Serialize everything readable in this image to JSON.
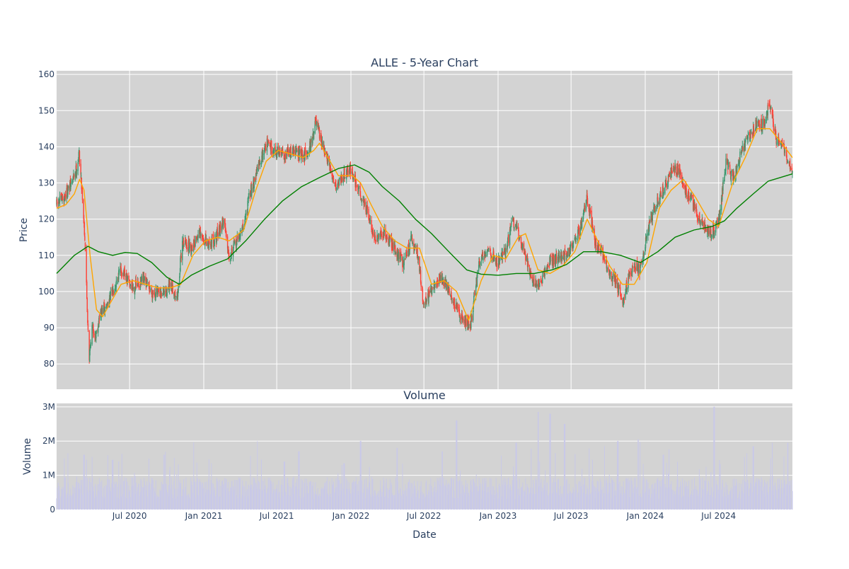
{
  "chart_data": [
    {
      "type": "candlestick",
      "title": "ALLE - 5-Year Chart",
      "ylabel": "Price",
      "ylim": [
        73,
        161
      ],
      "y_ticks": [
        "80",
        "90",
        "100",
        "110",
        "120",
        "130",
        "140",
        "150",
        "160"
      ],
      "x_ticks": [
        "Jul 2020",
        "Jan 2021",
        "Jul 2021",
        "Jan 2022",
        "Jul 2022",
        "Jan 2023",
        "Jul 2023",
        "Jan 2024",
        "Jul 2024"
      ],
      "x_tick_dates": [
        "2020-07-01",
        "2021-01-01",
        "2021-07-01",
        "2022-01-01",
        "2022-07-01",
        "2023-01-01",
        "2023-07-01",
        "2024-01-01",
        "2024-07-01"
      ],
      "xlim": [
        "2020-01-02",
        "2024-12-31"
      ],
      "grid": true,
      "colors": {
        "increasing": "#3d9970",
        "decreasing": "#ff4136",
        "ma_short": "#ffa500",
        "ma_long": "#008000",
        "plot_bg": "#d3d3d3"
      },
      "series": [
        {
          "role": "close_path",
          "points": [
            [
              "2020-01-02",
              124
            ],
            [
              "2020-01-20",
              126
            ],
            [
              "2020-02-05",
              129
            ],
            [
              "2020-02-20",
              134
            ],
            [
              "2020-02-27",
              138
            ],
            [
              "2020-03-05",
              128
            ],
            [
              "2020-03-12",
              115
            ],
            [
              "2020-03-18",
              95
            ],
            [
              "2020-03-23",
              82
            ],
            [
              "2020-03-30",
              90
            ],
            [
              "2020-04-08",
              88
            ],
            [
              "2020-04-20",
              94
            ],
            [
              "2020-05-05",
              96
            ],
            [
              "2020-05-20",
              100
            ],
            [
              "2020-06-08",
              106
            ],
            [
              "2020-06-20",
              104
            ],
            [
              "2020-07-10",
              101
            ],
            [
              "2020-08-05",
              103
            ],
            [
              "2020-08-25",
              100
            ],
            [
              "2020-09-15",
              99
            ],
            [
              "2020-10-10",
              101
            ],
            [
              "2020-10-28",
              99
            ],
            [
              "2020-11-09",
              114
            ],
            [
              "2020-11-30",
              112
            ],
            [
              "2020-12-20",
              116
            ],
            [
              "2021-01-10",
              113
            ],
            [
              "2021-02-01",
              115
            ],
            [
              "2021-02-20",
              120
            ],
            [
              "2021-03-05",
              110
            ],
            [
              "2021-03-20",
              113
            ],
            [
              "2021-04-10",
              118
            ],
            [
              "2021-04-25",
              127
            ],
            [
              "2021-05-15",
              134
            ],
            [
              "2021-06-05",
              141
            ],
            [
              "2021-06-25",
              139
            ],
            [
              "2021-07-20",
              138
            ],
            [
              "2021-08-15",
              139
            ],
            [
              "2021-09-05",
              137
            ],
            [
              "2021-09-25",
              141
            ],
            [
              "2021-10-05",
              147
            ],
            [
              "2021-10-20",
              141
            ],
            [
              "2021-11-10",
              134
            ],
            [
              "2021-11-26",
              129
            ],
            [
              "2021-12-10",
              132
            ],
            [
              "2021-12-30",
              134
            ],
            [
              "2022-01-20",
              128
            ],
            [
              "2022-02-05",
              124
            ],
            [
              "2022-02-20",
              118
            ],
            [
              "2022-03-05",
              114
            ],
            [
              "2022-03-25",
              116
            ],
            [
              "2022-04-20",
              112
            ],
            [
              "2022-05-10",
              108
            ],
            [
              "2022-05-30",
              114
            ],
            [
              "2022-06-15",
              111
            ],
            [
              "2022-06-30",
              97
            ],
            [
              "2022-07-15",
              99
            ],
            [
              "2022-08-10",
              104
            ],
            [
              "2022-08-25",
              102
            ],
            [
              "2022-09-20",
              95
            ],
            [
              "2022-10-10",
              92
            ],
            [
              "2022-10-25",
              91
            ],
            [
              "2022-11-15",
              108
            ],
            [
              "2022-12-05",
              112
            ],
            [
              "2022-12-30",
              108
            ],
            [
              "2023-01-20",
              111
            ],
            [
              "2023-02-05",
              120
            ],
            [
              "2023-02-20",
              116
            ],
            [
              "2023-03-10",
              110
            ],
            [
              "2023-03-25",
              104
            ],
            [
              "2023-04-15",
              101
            ],
            [
              "2023-05-05",
              108
            ],
            [
              "2023-05-25",
              109
            ],
            [
              "2023-06-20",
              110
            ],
            [
              "2023-07-10",
              114
            ],
            [
              "2023-07-25",
              118
            ],
            [
              "2023-08-10",
              126
            ],
            [
              "2023-08-30",
              113
            ],
            [
              "2023-09-20",
              110
            ],
            [
              "2023-10-05",
              104
            ],
            [
              "2023-10-20",
              103
            ],
            [
              "2023-11-05",
              97
            ],
            [
              "2023-11-20",
              104
            ],
            [
              "2023-12-05",
              107
            ],
            [
              "2023-12-20",
              106
            ],
            [
              "2024-01-10",
              118
            ],
            [
              "2024-01-25",
              123
            ],
            [
              "2024-02-15",
              128
            ],
            [
              "2024-03-05",
              133
            ],
            [
              "2024-03-25",
              134
            ],
            [
              "2024-04-10",
              128
            ],
            [
              "2024-04-25",
              125
            ],
            [
              "2024-05-10",
              121
            ],
            [
              "2024-05-25",
              118
            ],
            [
              "2024-06-15",
              116
            ],
            [
              "2024-07-01",
              120
            ],
            [
              "2024-07-20",
              136
            ],
            [
              "2024-08-05",
              131
            ],
            [
              "2024-08-25",
              138
            ],
            [
              "2024-09-15",
              143
            ],
            [
              "2024-10-05",
              147
            ],
            [
              "2024-10-20",
              146
            ],
            [
              "2024-11-05",
              152
            ],
            [
              "2024-11-20",
              142
            ],
            [
              "2024-12-05",
              141
            ],
            [
              "2024-12-31",
              132
            ]
          ]
        },
        {
          "role": "ma_short",
          "points": [
            [
              "2020-01-02",
              123
            ],
            [
              "2020-01-25",
              124
            ],
            [
              "2020-02-15",
              127
            ],
            [
              "2020-02-28",
              131
            ],
            [
              "2020-03-10",
              128
            ],
            [
              "2020-03-25",
              110
            ],
            [
              "2020-04-10",
              95
            ],
            [
              "2020-04-25",
              93
            ],
            [
              "2020-05-15",
              97
            ],
            [
              "2020-06-10",
              102
            ],
            [
              "2020-07-10",
              103
            ],
            [
              "2020-08-10",
              102
            ],
            [
              "2020-09-10",
              101
            ],
            [
              "2020-10-10",
              101
            ],
            [
              "2020-11-05",
              102
            ],
            [
              "2020-12-05",
              110
            ],
            [
              "2021-01-05",
              114
            ],
            [
              "2021-02-05",
              115
            ],
            [
              "2021-03-05",
              114
            ],
            [
              "2021-04-10",
              117
            ],
            [
              "2021-05-10",
              128
            ],
            [
              "2021-06-05",
              136
            ],
            [
              "2021-07-05",
              139
            ],
            [
              "2021-08-05",
              138
            ],
            [
              "2021-09-05",
              137
            ],
            [
              "2021-10-01",
              139
            ],
            [
              "2021-10-15",
              141
            ],
            [
              "2021-11-05",
              137
            ],
            [
              "2021-12-01",
              132
            ],
            [
              "2022-01-05",
              132
            ],
            [
              "2022-01-25",
              130
            ],
            [
              "2022-02-20",
              124
            ],
            [
              "2022-03-20",
              118
            ],
            [
              "2022-04-20",
              114
            ],
            [
              "2022-05-20",
              112
            ],
            [
              "2022-06-20",
              112
            ],
            [
              "2022-07-20",
              102
            ],
            [
              "2022-08-20",
              103
            ],
            [
              "2022-09-20",
              100
            ],
            [
              "2022-10-20",
              92
            ],
            [
              "2022-11-20",
              103
            ],
            [
              "2022-12-20",
              110
            ],
            [
              "2023-01-20",
              109
            ],
            [
              "2023-02-20",
              115
            ],
            [
              "2023-03-10",
              116
            ],
            [
              "2023-04-10",
              106
            ],
            [
              "2023-05-10",
              105
            ],
            [
              "2023-06-10",
              107
            ],
            [
              "2023-07-10",
              111
            ],
            [
              "2023-08-10",
              120
            ],
            [
              "2023-09-05",
              114
            ],
            [
              "2023-10-05",
              107
            ],
            [
              "2023-11-05",
              102
            ],
            [
              "2023-12-05",
              102
            ],
            [
              "2024-01-05",
              108
            ],
            [
              "2024-02-05",
              123
            ],
            [
              "2024-03-05",
              128
            ],
            [
              "2024-04-05",
              131
            ],
            [
              "2024-05-05",
              126
            ],
            [
              "2024-06-05",
              120
            ],
            [
              "2024-07-01",
              118
            ],
            [
              "2024-08-05",
              130
            ],
            [
              "2024-09-05",
              137
            ],
            [
              "2024-10-05",
              145
            ],
            [
              "2024-11-05",
              145
            ],
            [
              "2024-12-05",
              141
            ],
            [
              "2024-12-31",
              137
            ]
          ]
        },
        {
          "role": "ma_long",
          "points": [
            [
              "2020-01-02",
              105
            ],
            [
              "2020-02-15",
              110
            ],
            [
              "2020-03-20",
              112.5
            ],
            [
              "2020-04-15",
              111
            ],
            [
              "2020-05-20",
              110
            ],
            [
              "2020-06-20",
              110.8
            ],
            [
              "2020-07-20",
              110.5
            ],
            [
              "2020-08-25",
              108
            ],
            [
              "2020-10-01",
              104
            ],
            [
              "2020-11-01",
              102
            ],
            [
              "2020-12-01",
              104.5
            ],
            [
              "2021-01-15",
              107
            ],
            [
              "2021-03-01",
              109
            ],
            [
              "2021-04-15",
              114
            ],
            [
              "2021-06-01",
              120
            ],
            [
              "2021-07-15",
              125
            ],
            [
              "2021-09-01",
              129
            ],
            [
              "2021-10-15",
              131.5
            ],
            [
              "2021-12-01",
              134
            ],
            [
              "2022-01-10",
              135
            ],
            [
              "2022-02-15",
              133
            ],
            [
              "2022-03-20",
              129
            ],
            [
              "2022-05-01",
              125
            ],
            [
              "2022-06-10",
              120
            ],
            [
              "2022-07-20",
              116
            ],
            [
              "2022-09-01",
              111
            ],
            [
              "2022-10-15",
              106
            ],
            [
              "2022-11-20",
              104.8
            ],
            [
              "2023-01-01",
              104.5
            ],
            [
              "2023-02-15",
              105
            ],
            [
              "2023-04-01",
              105
            ],
            [
              "2023-05-15",
              106
            ],
            [
              "2023-06-20",
              107.5
            ],
            [
              "2023-08-01",
              111
            ],
            [
              "2023-09-15",
              111
            ],
            [
              "2023-11-01",
              110
            ],
            [
              "2023-12-20",
              108
            ],
            [
              "2024-02-01",
              111
            ],
            [
              "2024-03-15",
              115
            ],
            [
              "2024-05-01",
              117
            ],
            [
              "2024-06-15",
              118
            ],
            [
              "2024-07-15",
              119.5
            ],
            [
              "2024-08-15",
              123
            ],
            [
              "2024-09-25",
              127
            ],
            [
              "2024-11-01",
              130.5
            ],
            [
              "2024-12-31",
              132.5
            ]
          ]
        }
      ]
    },
    {
      "type": "bar",
      "title": "Volume",
      "xlabel": "Date",
      "ylabel": "Volume",
      "ylim": [
        0,
        3100000
      ],
      "y_ticks": [
        "0",
        "1M",
        "2M",
        "3M"
      ],
      "x_ticks": [
        "Jul 2020",
        "Jan 2021",
        "Jul 2021",
        "Jan 2022",
        "Jul 2022",
        "Jan 2023",
        "Jul 2023",
        "Jan 2024",
        "Jul 2024"
      ],
      "bar_color": "#c9c9e8",
      "typical_volume": 700000,
      "spikes": [
        [
          "2020-03-10",
          1600000
        ],
        [
          "2020-05-20",
          1450000
        ],
        [
          "2020-09-25",
          1600000
        ],
        [
          "2021-07-20",
          1400000
        ],
        [
          "2021-08-25",
          1700000
        ],
        [
          "2021-12-15",
          1350000
        ],
        [
          "2022-01-25",
          2000000
        ],
        [
          "2022-04-25",
          1800000
        ],
        [
          "2022-08-15",
          1700000
        ],
        [
          "2022-09-20",
          2600000
        ],
        [
          "2023-02-15",
          1950000
        ],
        [
          "2023-04-10",
          2850000
        ],
        [
          "2023-05-10",
          2800000
        ],
        [
          "2023-06-15",
          2500000
        ],
        [
          "2023-10-25",
          2000000
        ],
        [
          "2023-12-15",
          2050000
        ],
        [
          "2024-02-15",
          1600000
        ],
        [
          "2024-06-20",
          3000000
        ],
        [
          "2024-09-25",
          1850000
        ],
        [
          "2024-11-10",
          1950000
        ],
        [
          "2024-12-20",
          1950000
        ]
      ]
    }
  ]
}
